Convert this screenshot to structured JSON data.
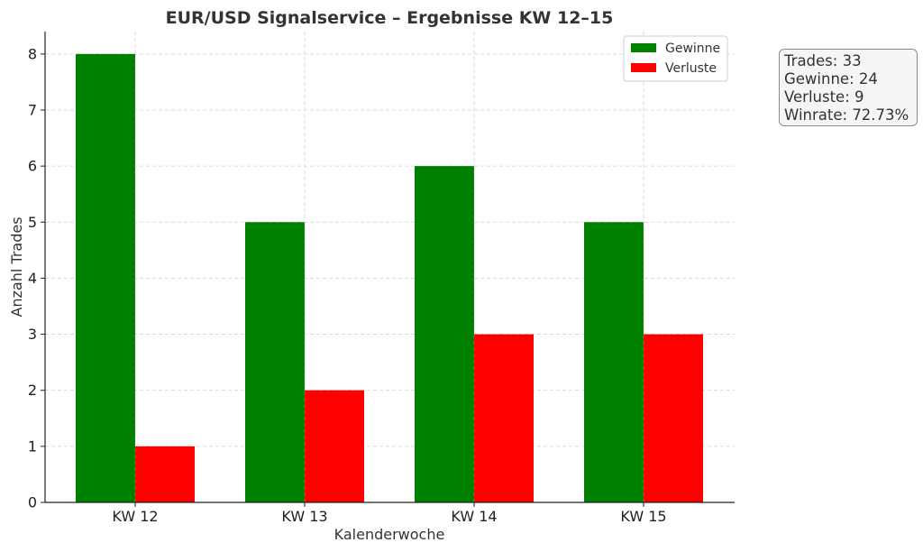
{
  "chart_data": {
    "type": "bar",
    "title": "EUR/USD Signalservice – Ergebnisse KW 12–15",
    "xlabel": "Kalenderwoche",
    "ylabel": "Anzahl Trades",
    "categories": [
      "KW 12",
      "KW 13",
      "KW 14",
      "KW 15"
    ],
    "series": [
      {
        "name": "Gewinne",
        "values": [
          8,
          5,
          6,
          5
        ],
        "color": "#008000"
      },
      {
        "name": "Verluste",
        "values": [
          1,
          2,
          3,
          3
        ],
        "color": "#ff0000"
      }
    ],
    "ylim": [
      0,
      8.4
    ],
    "yticks": [
      "0",
      "1",
      "2",
      "3",
      "4",
      "5",
      "6",
      "7",
      "8"
    ],
    "grid": true,
    "legend_position": "top-right"
  },
  "stats_box": {
    "lines": [
      "Trades: 33",
      "Gewinne: 24",
      "Verluste: 9",
      "Winrate: 72.73%"
    ]
  }
}
